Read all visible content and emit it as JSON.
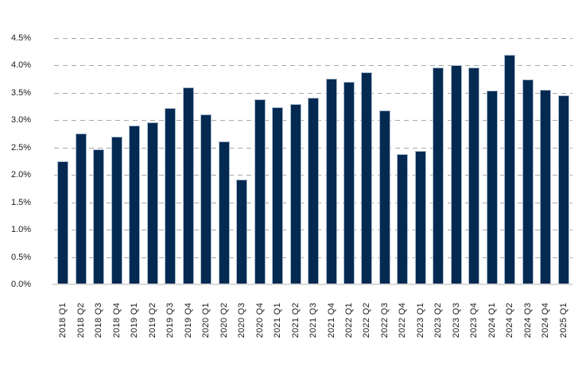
{
  "chart_data": {
    "type": "bar",
    "title": "",
    "xlabel": "",
    "ylabel": "",
    "legend": "none",
    "grid": "horizontal-dashed",
    "ylim": [
      0,
      4.5
    ],
    "ytick_step": 0.5,
    "unit": "%",
    "y_tick_labels": [
      "4.5%",
      "4.0%",
      "3.5%",
      "3.0%",
      "2.5%",
      "2.0%",
      "1.5%",
      "1.0%",
      "0.5%",
      "0.0%"
    ],
    "categories": [
      "2018 Q1",
      "2018 Q2",
      "2018 Q3",
      "2018 Q4",
      "2019 Q1",
      "2019 Q2",
      "2019 Q3",
      "2019 Q4",
      "2020 Q1",
      "2020 Q2",
      "2020 Q3",
      "2020 Q4",
      "2021 Q1",
      "2021 Q2",
      "2021 Q3",
      "2021 Q4",
      "2022 Q1",
      "2022 Q2",
      "2022 Q3",
      "2022 Q4",
      "2023 Q1",
      "2023 Q2",
      "2023 Q3",
      "2023 Q4",
      "2024 Q1",
      "2024 Q2",
      "2024 Q3",
      "2024 Q4",
      "2025 Q1"
    ],
    "values": [
      2.25,
      2.76,
      2.47,
      2.7,
      2.91,
      2.96,
      3.22,
      3.6,
      3.11,
      2.61,
      1.92,
      3.38,
      3.23,
      3.29,
      3.41,
      3.76,
      3.7,
      3.87,
      3.18,
      2.38,
      2.44,
      3.96,
      4.0,
      3.96,
      3.54,
      4.19,
      3.75,
      3.55,
      3.45
    ],
    "colors": {
      "bar_fill": "#052a52",
      "bar_edge": "#a9bccd",
      "gridline": "#a8a8a8",
      "axis_line": "#d9d9d9",
      "tick_text": "#1a1a1a",
      "background": "#ffffff"
    }
  }
}
